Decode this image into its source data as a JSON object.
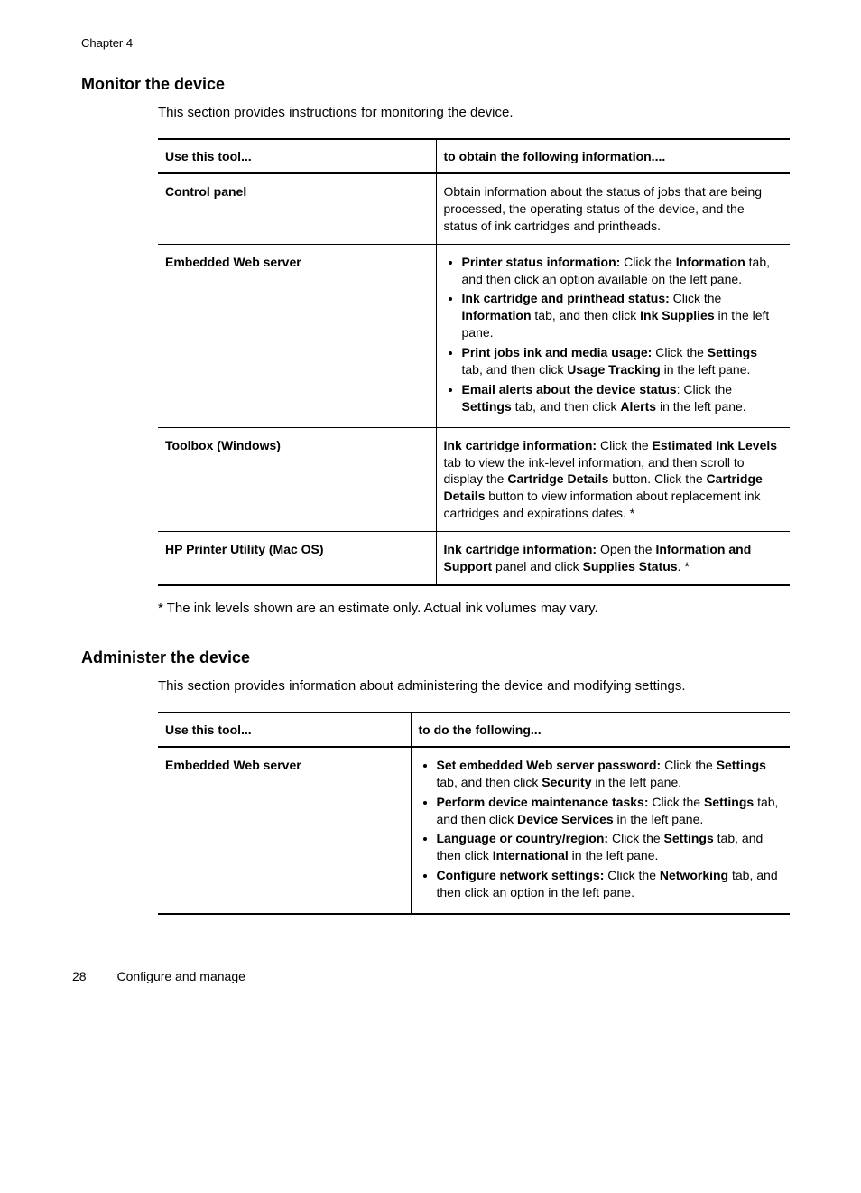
{
  "chapter_label": "Chapter 4",
  "section1": {
    "heading": "Monitor the device",
    "intro": "This section provides instructions for monitoring the device.",
    "col1": "Use this tool...",
    "col2": "to obtain the following information....",
    "rows": {
      "r1_tool": "Control panel",
      "r2_tool": "Embedded Web server",
      "r3_tool": "Toolbox (Windows)",
      "r4_tool": "HP Printer Utility (Mac OS)"
    },
    "footnote": "* The ink levels shown are an estimate only. Actual ink volumes may vary."
  },
  "section2": {
    "heading": "Administer the device",
    "intro": "This section provides information about administering the device and modifying settings.",
    "col1": "Use this tool...",
    "col2": "to do the following...",
    "rows": {
      "r1_tool": "Embedded Web server"
    }
  },
  "footer": {
    "page_number": "28",
    "section_title": "Configure and manage"
  }
}
